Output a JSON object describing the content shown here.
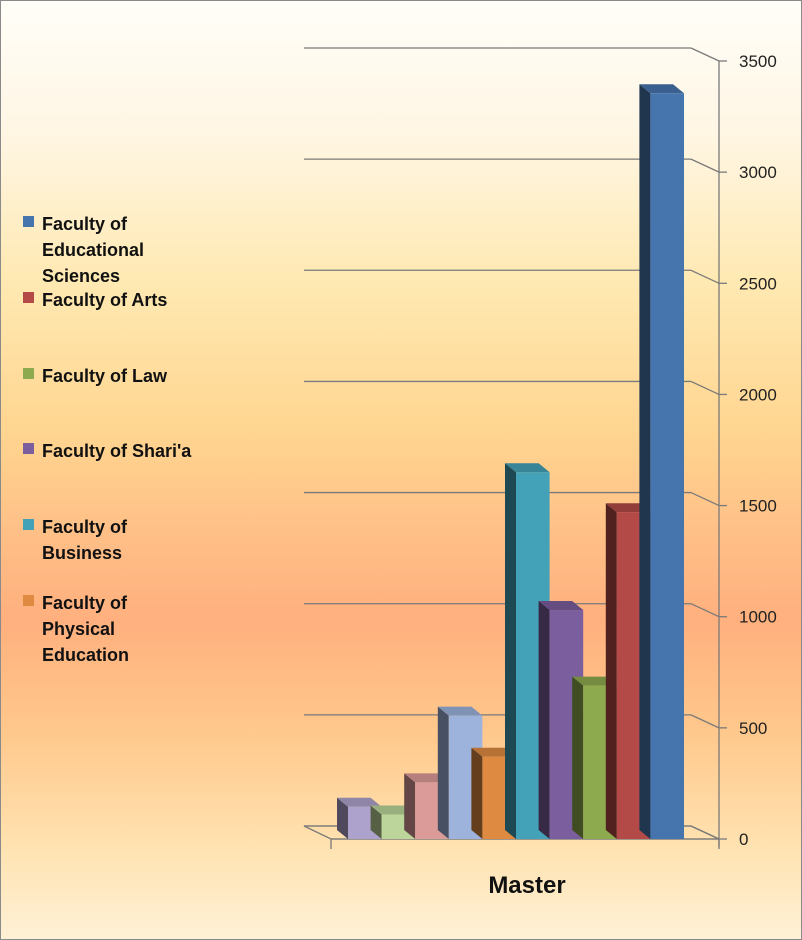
{
  "chart_data": {
    "type": "bar",
    "title": "",
    "xlabel": "Master",
    "ylabel": "",
    "ylim": [
      0,
      3500
    ],
    "yticks": [
      0,
      500,
      1000,
      1500,
      2000,
      2500,
      3000,
      3500
    ],
    "ytick_labels": [
      "0",
      "500",
      "1000",
      "1500",
      "2000",
      "2500",
      "3000",
      "3500"
    ],
    "grid": true,
    "legend_position": "left",
    "categories": [
      "Master"
    ],
    "series": [
      {
        "name": "",
        "color": "#ADA2CC",
        "values": [
          145
        ]
      },
      {
        "name": "",
        "color": "#BCD59A",
        "values": [
          110
        ]
      },
      {
        "name": "",
        "color": "#DB9B99",
        "values": [
          255
        ]
      },
      {
        "name": "",
        "color": "#9DB3DC",
        "values": [
          555
        ]
      },
      {
        "name": "Faculty of Physical Education",
        "color": "#DE8A40",
        "values": [
          370
        ]
      },
      {
        "name": "Faculty of Business",
        "color": "#43A2B7",
        "values": [
          1650
        ]
      },
      {
        "name": "Faculty of Shari'a",
        "color": "#7B5E9E",
        "values": [
          1030
        ]
      },
      {
        "name": "Faculty of Law",
        "color": "#8EAA4E",
        "values": [
          690
        ]
      },
      {
        "name": "Faculty of Arts",
        "color": "#B34A47",
        "values": [
          1470
        ]
      },
      {
        "name": "Faculty of Educational Sciences",
        "color": "#4675AE",
        "values": [
          3355
        ]
      }
    ],
    "legend": [
      {
        "label": "Faculty of Educational Sciences",
        "color": "#4675AE"
      },
      {
        "label": "Faculty of Arts",
        "color": "#B34A47"
      },
      {
        "label": "Faculty of Law",
        "color": "#8EAA4E"
      },
      {
        "label": "Faculty of Shari'a",
        "color": "#7B5E9E"
      },
      {
        "label": "Faculty of Business",
        "color": "#43A2B7"
      },
      {
        "label": "Faculty of Physical Education",
        "color": "#DE8A40"
      }
    ]
  }
}
